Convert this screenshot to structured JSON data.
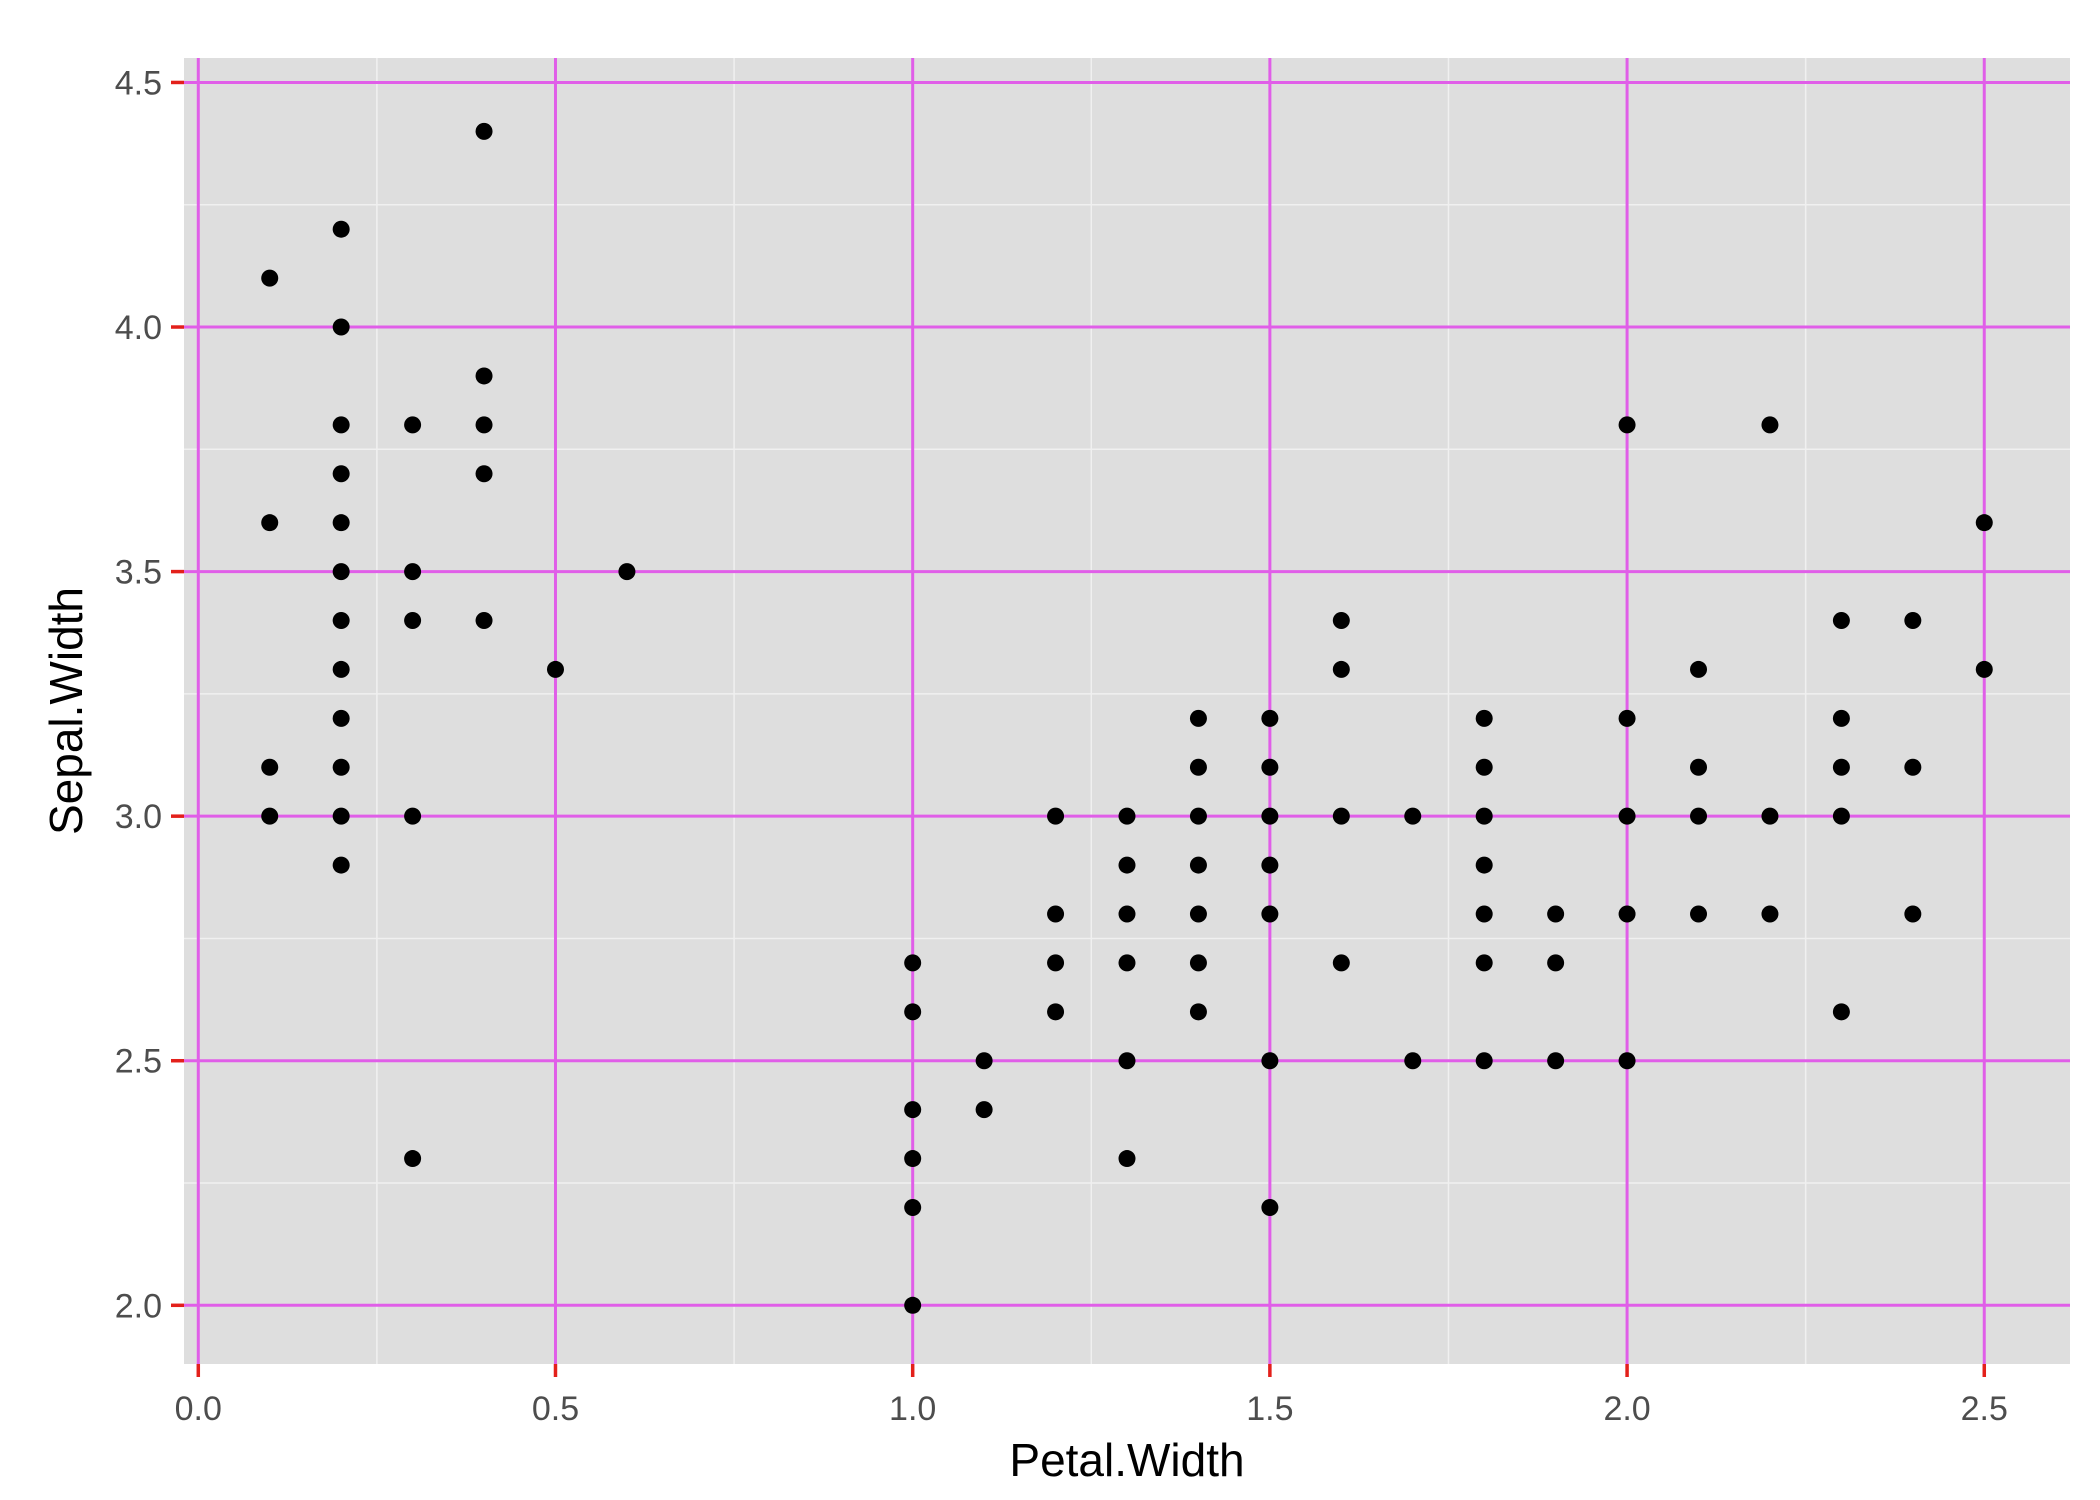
{
  "chart_data": {
    "type": "scatter",
    "xlabel": "Petal.Width",
    "ylabel": "Sepal.Width",
    "xlim": [
      -0.02,
      2.62
    ],
    "ylim": [
      1.88,
      4.55
    ],
    "x_ticks": [
      0.0,
      0.5,
      1.0,
      1.5,
      2.0,
      2.5
    ],
    "x_tick_labels": [
      "0.0",
      "0.5",
      "1.0",
      "1.5",
      "2.0",
      "2.5"
    ],
    "y_ticks": [
      2.0,
      2.5,
      3.0,
      3.5,
      4.0,
      4.5
    ],
    "y_tick_labels": [
      "2.0",
      "2.5",
      "3.0",
      "3.5",
      "4.0",
      "4.5"
    ],
    "x_minor_ticks": [
      0.25,
      0.75,
      1.25,
      1.75,
      2.25
    ],
    "y_minor_ticks": [
      2.25,
      2.75,
      3.25,
      3.75,
      4.25
    ],
    "grid": true,
    "colors": {
      "panel_background": "#dedede",
      "minor_grid": "#f0f0f0",
      "major_grid": "#e05ee8",
      "tick_marks": "#e3201b",
      "points": "#000000"
    },
    "points": [
      {
        "x": 0.1,
        "y": 4.1
      },
      {
        "x": 0.1,
        "y": 3.6
      },
      {
        "x": 0.1,
        "y": 3.1
      },
      {
        "x": 0.1,
        "y": 3.0
      },
      {
        "x": 0.2,
        "y": 4.2
      },
      {
        "x": 0.2,
        "y": 4.0
      },
      {
        "x": 0.2,
        "y": 3.8
      },
      {
        "x": 0.2,
        "y": 3.7
      },
      {
        "x": 0.2,
        "y": 3.6
      },
      {
        "x": 0.2,
        "y": 3.5
      },
      {
        "x": 0.2,
        "y": 3.4
      },
      {
        "x": 0.2,
        "y": 3.3
      },
      {
        "x": 0.2,
        "y": 3.2
      },
      {
        "x": 0.2,
        "y": 3.1
      },
      {
        "x": 0.2,
        "y": 3.0
      },
      {
        "x": 0.2,
        "y": 2.9
      },
      {
        "x": 0.3,
        "y": 3.8
      },
      {
        "x": 0.3,
        "y": 3.5
      },
      {
        "x": 0.3,
        "y": 3.4
      },
      {
        "x": 0.3,
        "y": 3.0
      },
      {
        "x": 0.3,
        "y": 2.3
      },
      {
        "x": 0.4,
        "y": 4.4
      },
      {
        "x": 0.4,
        "y": 3.9
      },
      {
        "x": 0.4,
        "y": 3.8
      },
      {
        "x": 0.4,
        "y": 3.7
      },
      {
        "x": 0.4,
        "y": 3.4
      },
      {
        "x": 0.5,
        "y": 3.3
      },
      {
        "x": 0.6,
        "y": 3.5
      },
      {
        "x": 1.0,
        "y": 2.7
      },
      {
        "x": 1.0,
        "y": 2.6
      },
      {
        "x": 1.0,
        "y": 2.4
      },
      {
        "x": 1.0,
        "y": 2.3
      },
      {
        "x": 1.0,
        "y": 2.2
      },
      {
        "x": 1.0,
        "y": 2.0
      },
      {
        "x": 1.1,
        "y": 2.5
      },
      {
        "x": 1.1,
        "y": 2.4
      },
      {
        "x": 1.2,
        "y": 3.0
      },
      {
        "x": 1.2,
        "y": 2.8
      },
      {
        "x": 1.2,
        "y": 2.7
      },
      {
        "x": 1.2,
        "y": 2.6
      },
      {
        "x": 1.3,
        "y": 3.0
      },
      {
        "x": 1.3,
        "y": 2.9
      },
      {
        "x": 1.3,
        "y": 2.8
      },
      {
        "x": 1.3,
        "y": 2.7
      },
      {
        "x": 1.3,
        "y": 2.5
      },
      {
        "x": 1.3,
        "y": 2.3
      },
      {
        "x": 1.4,
        "y": 3.2
      },
      {
        "x": 1.4,
        "y": 3.1
      },
      {
        "x": 1.4,
        "y": 3.0
      },
      {
        "x": 1.4,
        "y": 2.9
      },
      {
        "x": 1.4,
        "y": 2.8
      },
      {
        "x": 1.4,
        "y": 2.7
      },
      {
        "x": 1.4,
        "y": 2.6
      },
      {
        "x": 1.5,
        "y": 3.2
      },
      {
        "x": 1.5,
        "y": 3.1
      },
      {
        "x": 1.5,
        "y": 3.0
      },
      {
        "x": 1.5,
        "y": 2.9
      },
      {
        "x": 1.5,
        "y": 2.8
      },
      {
        "x": 1.5,
        "y": 2.5
      },
      {
        "x": 1.5,
        "y": 2.2
      },
      {
        "x": 1.6,
        "y": 3.4
      },
      {
        "x": 1.6,
        "y": 3.3
      },
      {
        "x": 1.6,
        "y": 3.0
      },
      {
        "x": 1.6,
        "y": 2.7
      },
      {
        "x": 1.7,
        "y": 3.0
      },
      {
        "x": 1.7,
        "y": 2.5
      },
      {
        "x": 1.8,
        "y": 3.2
      },
      {
        "x": 1.8,
        "y": 3.1
      },
      {
        "x": 1.8,
        "y": 3.0
      },
      {
        "x": 1.8,
        "y": 2.9
      },
      {
        "x": 1.8,
        "y": 2.8
      },
      {
        "x": 1.8,
        "y": 2.7
      },
      {
        "x": 1.8,
        "y": 2.5
      },
      {
        "x": 1.9,
        "y": 2.8
      },
      {
        "x": 1.9,
        "y": 2.7
      },
      {
        "x": 1.9,
        "y": 2.5
      },
      {
        "x": 2.0,
        "y": 3.8
      },
      {
        "x": 2.0,
        "y": 3.2
      },
      {
        "x": 2.0,
        "y": 3.0
      },
      {
        "x": 2.0,
        "y": 2.8
      },
      {
        "x": 2.0,
        "y": 2.5
      },
      {
        "x": 2.1,
        "y": 3.3
      },
      {
        "x": 2.1,
        "y": 3.1
      },
      {
        "x": 2.1,
        "y": 3.0
      },
      {
        "x": 2.1,
        "y": 2.8
      },
      {
        "x": 2.2,
        "y": 3.8
      },
      {
        "x": 2.2,
        "y": 3.0
      },
      {
        "x": 2.2,
        "y": 2.8
      },
      {
        "x": 2.3,
        "y": 3.4
      },
      {
        "x": 2.3,
        "y": 3.2
      },
      {
        "x": 2.3,
        "y": 3.1
      },
      {
        "x": 2.3,
        "y": 3.0
      },
      {
        "x": 2.3,
        "y": 2.6
      },
      {
        "x": 2.4,
        "y": 3.4
      },
      {
        "x": 2.4,
        "y": 3.1
      },
      {
        "x": 2.4,
        "y": 2.8
      },
      {
        "x": 2.5,
        "y": 3.6
      },
      {
        "x": 2.5,
        "y": 3.3
      }
    ]
  }
}
